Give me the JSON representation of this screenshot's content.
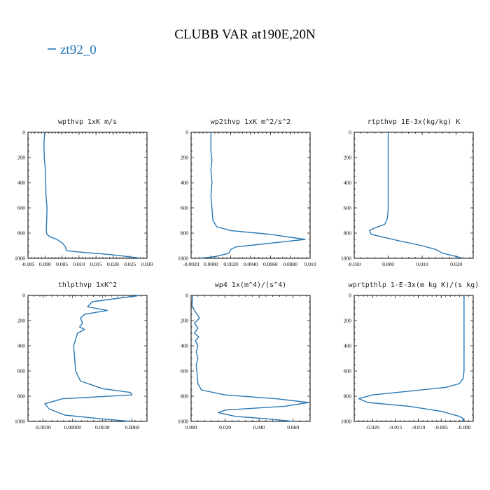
{
  "figure": {
    "title": "CLUBB VAR at190E,20N",
    "legend": [
      {
        "label": "zt92_0",
        "color": "#2878b5"
      }
    ]
  },
  "chart_data": [
    {
      "type": "line",
      "title": "wpthvp  1xK m/s",
      "xlim": [
        -0.005,
        0.03
      ],
      "ylim": [
        0,
        1000
      ],
      "y_inverted": true,
      "xticks": [
        -0.005,
        0.0,
        0.005,
        0.01,
        0.015,
        0.02,
        0.025,
        0.03
      ],
      "xtick_labels": [
        "-0.005",
        "0.000",
        "0.005",
        "0.010",
        "0.015",
        "0.020",
        "0.025",
        "0.030"
      ],
      "yticks": [
        0,
        200,
        400,
        600,
        800,
        1000
      ],
      "ytick_labels": [
        "0",
        "200",
        "400",
        "600",
        "800",
        "1000"
      ],
      "series": [
        {
          "name": "zt92_0",
          "color": "#2878b5",
          "x": [
            -0.0001,
            -0.0003,
            -0.0002,
            0.0001,
            0.0002,
            0.0003,
            0.0006,
            0.0005,
            0.0004,
            0.0004,
            0.0006,
            0.0015,
            0.0035,
            0.0052,
            0.006,
            0.0063,
            0.012,
            0.019,
            0.024,
            0.0282
          ],
          "y": [
            0,
            100,
            200,
            300,
            400,
            500,
            600,
            700,
            760,
            790,
            810,
            830,
            850,
            880,
            910,
            940,
            955,
            970,
            985,
            1000
          ]
        }
      ]
    },
    {
      "type": "line",
      "title": "wp2thvp  1xK m^2/s^2",
      "xlim": [
        -0.002,
        0.01
      ],
      "ylim": [
        0,
        1000
      ],
      "y_inverted": true,
      "xticks": [
        -0.002,
        0.0,
        0.002,
        0.004,
        0.006,
        0.008,
        0.01
      ],
      "xtick_labels": [
        "-0.0020",
        "0.0000",
        "0.0020",
        "0.0040",
        "0.0060",
        "0.0080",
        "0.010"
      ],
      "yticks": [
        0,
        200,
        400,
        600,
        800,
        1000
      ],
      "ytick_labels": [
        "0",
        "200",
        "400",
        "600",
        "800",
        "1000"
      ],
      "series": [
        {
          "name": "zt92_0",
          "color": "#2878b5",
          "x": [
            0.0,
            0.0,
            0.0001,
            0.0,
            0.0001,
            0.0,
            0.0001,
            0.0002,
            0.0006,
            0.002,
            0.006,
            0.0095,
            0.006,
            0.0025,
            0.002,
            0.0018,
            0.0005,
            -0.001
          ],
          "y": [
            0,
            150,
            220,
            300,
            400,
            500,
            600,
            700,
            750,
            780,
            810,
            850,
            880,
            910,
            930,
            960,
            985,
            1000
          ]
        }
      ]
    },
    {
      "type": "line",
      "title": "rtpthvp  1E-3x(kg/kg) K",
      "xlim": [
        -0.01,
        0.025
      ],
      "ylim": [
        0,
        1000
      ],
      "y_inverted": true,
      "xticks": [
        -0.01,
        0.0,
        0.01,
        0.02
      ],
      "xtick_labels": [
        "-0.010",
        "0.000",
        "0.010",
        "0.020"
      ],
      "yticks": [
        0,
        200,
        400,
        600,
        800,
        1000
      ],
      "ytick_labels": [
        "0",
        "200",
        "400",
        "600",
        "800",
        "1000"
      ],
      "series": [
        {
          "name": "zt92_0",
          "color": "#2878b5",
          "x": [
            0.0,
            0.0,
            0.0,
            0.0,
            -0.0002,
            -0.001,
            -0.004,
            -0.0055,
            -0.005,
            0.003,
            0.01,
            0.014,
            0.016,
            0.02,
            0.022
          ],
          "y": [
            0,
            200,
            400,
            600,
            680,
            730,
            760,
            780,
            810,
            860,
            900,
            930,
            960,
            985,
            1000
          ]
        }
      ]
    },
    {
      "type": "line",
      "title": "thlpthvp  1xK^2",
      "xlim": [
        -0.0045,
        0.0075
      ],
      "ylim": [
        0,
        1000
      ],
      "y_inverted": true,
      "xticks": [
        -0.003,
        0.0,
        0.003,
        0.006
      ],
      "xtick_labels": [
        "-0.0030",
        "0.00000",
        "0.0030",
        "0.0060"
      ],
      "yticks": [
        0,
        200,
        400,
        600,
        800,
        1000
      ],
      "ytick_labels": [
        "0",
        "200",
        "400",
        "600",
        "800",
        "1000"
      ],
      "series": [
        {
          "name": "zt92_0",
          "color": "#2878b5",
          "x": [
            0.0068,
            0.002,
            0.0015,
            0.0035,
            0.0012,
            0.0008,
            0.001,
            0.0007,
            0.0012,
            0.0005,
            0.0003,
            0.0001,
            0.0002,
            0.0003,
            0.0008,
            0.003,
            0.0058,
            0.006,
            -0.001,
            -0.0028,
            -0.0024,
            -0.0008,
            0.003,
            0.0058
          ],
          "y": [
            0,
            50,
            90,
            120,
            150,
            180,
            220,
            250,
            270,
            300,
            350,
            400,
            500,
            600,
            680,
            740,
            770,
            790,
            820,
            860,
            900,
            950,
            980,
            1000
          ]
        }
      ]
    },
    {
      "type": "line",
      "title": "wp4  1x(m^4)/(s^4)",
      "xlim": [
        0.0,
        0.07
      ],
      "ylim": [
        0,
        1000
      ],
      "y_inverted": true,
      "xticks": [
        0.0,
        0.02,
        0.04,
        0.06
      ],
      "xtick_labels": [
        "0.000",
        "0.020",
        "0.040",
        "0.060"
      ],
      "yticks": [
        0,
        200,
        400,
        600,
        800,
        1000
      ],
      "ytick_labels": [
        "0",
        "200",
        "400",
        "600",
        "800",
        "1000"
      ],
      "series": [
        {
          "name": "zt92_0",
          "color": "#2878b5",
          "x": [
            0.001,
            0.0005,
            0.002,
            0.005,
            0.002,
            0.004,
            0.002,
            0.0045,
            0.0025,
            0.004,
            0.003,
            0.004,
            0.003,
            0.0035,
            0.004,
            0.006,
            0.02,
            0.05,
            0.069,
            0.055,
            0.02,
            0.016,
            0.026,
            0.045,
            0.06
          ],
          "y": [
            0,
            80,
            120,
            180,
            220,
            260,
            300,
            330,
            360,
            400,
            450,
            500,
            550,
            620,
            700,
            750,
            790,
            820,
            850,
            880,
            910,
            930,
            960,
            980,
            1000
          ]
        }
      ]
    },
    {
      "type": "line",
      "title": "wprtpthlp  1-E-3x(m kg K)/(s kg)",
      "xlim": [
        -0.024,
        0.002
      ],
      "ylim": [
        0,
        1000
      ],
      "y_inverted": true,
      "xticks": [
        -0.02,
        -0.015,
        -0.01,
        -0.005,
        0.0
      ],
      "xtick_labels": [
        "-0.020",
        "-0.015",
        "-0.010",
        "-0.005",
        "-0.000"
      ],
      "yticks": [
        0,
        200,
        400,
        600,
        800,
        1000
      ],
      "ytick_labels": [
        "0",
        "200",
        "400",
        "600",
        "800",
        "1000"
      ],
      "series": [
        {
          "name": "zt92_0",
          "color": "#2878b5",
          "x": [
            0.0,
            0.0,
            0.0,
            0.0,
            -0.0002,
            -0.001,
            -0.004,
            -0.012,
            -0.02,
            -0.023,
            -0.021,
            -0.012,
            -0.005,
            -0.001,
            0.0,
            -0.0005
          ],
          "y": [
            0,
            200,
            400,
            600,
            660,
            700,
            730,
            760,
            790,
            820,
            850,
            880,
            920,
            960,
            980,
            1000
          ]
        }
      ]
    }
  ]
}
